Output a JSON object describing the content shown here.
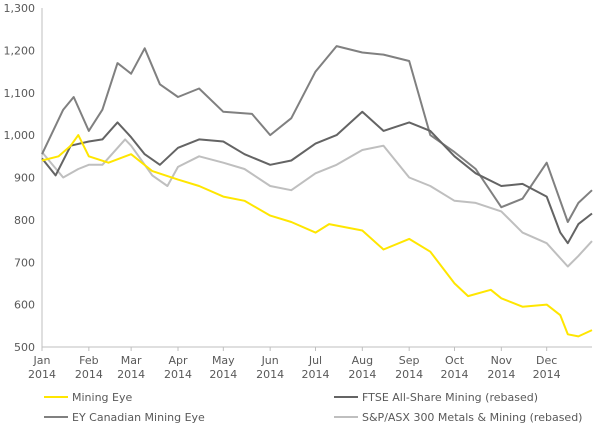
{
  "chart_data": {
    "type": "line",
    "title": "",
    "xlabel": "",
    "ylabel": "",
    "ylim": [
      500,
      1300
    ],
    "yticks": [
      500,
      600,
      700,
      800,
      900,
      1000,
      1100,
      1200,
      1300
    ],
    "yticks_labels": [
      "500",
      "600",
      "700",
      "800",
      "900",
      "1,000",
      "1,100",
      "1,200",
      "1,300"
    ],
    "x_months": [
      {
        "month": "Jan",
        "year": "2014"
      },
      {
        "month": "Feb",
        "year": "2014"
      },
      {
        "month": "Mar",
        "year": "2014"
      },
      {
        "month": "Apr",
        "year": "2014"
      },
      {
        "month": "May",
        "year": "2014"
      },
      {
        "month": "Jun",
        "year": "2014"
      },
      {
        "month": "Jul",
        "year": "2014"
      },
      {
        "month": "Aug",
        "year": "2014"
      },
      {
        "month": "Sep",
        "year": "2014"
      },
      {
        "month": "Oct",
        "year": "2014"
      },
      {
        "month": "Nov",
        "year": "2014"
      },
      {
        "month": "Dec",
        "year": "2014"
      }
    ],
    "grid": false,
    "legend_position": "bottom",
    "series": [
      {
        "name": "Mining Eye",
        "color": "#FFE600",
        "points": [
          [
            "Jan 2014",
            940
          ],
          [
            "Jan 12, 2014",
            950
          ],
          [
            "Jan 20, 2014",
            975
          ],
          [
            "Jan 25, 2014",
            1000
          ],
          [
            "Feb 2014",
            950
          ],
          [
            "Feb 14, 2014",
            935
          ],
          [
            "Mar 2014",
            955
          ],
          [
            "Mar 15, 2014",
            915
          ],
          [
            "Apr 2014",
            895
          ],
          [
            "Apr 15, 2014",
            880
          ],
          [
            "May 2014",
            855
          ],
          [
            "May 15, 2014",
            845
          ],
          [
            "Jun 2014",
            810
          ],
          [
            "Jun 15, 2014",
            795
          ],
          [
            "Jul 2014",
            770
          ],
          [
            "Jul 10, 2014",
            790
          ],
          [
            "Aug 2014",
            775
          ],
          [
            "Aug 15, 2014",
            730
          ],
          [
            "Sep 2014",
            755
          ],
          [
            "Sep 15, 2014",
            725
          ],
          [
            "Oct 2014",
            650
          ],
          [
            "Oct 10, 2014",
            620
          ],
          [
            "Oct 25, 2014",
            635
          ],
          [
            "Nov 2014",
            615
          ],
          [
            "Nov 15, 2014",
            595
          ],
          [
            "Dec 2014",
            600
          ],
          [
            "Dec 10, 2014",
            575
          ],
          [
            "Dec 15, 2014",
            530
          ],
          [
            "Dec 22, 2014",
            525
          ],
          [
            "Dec 31, 2014",
            540
          ]
        ]
      },
      {
        "name": "FTSE All-Share Mining (rebased)",
        "color": "#646464",
        "points": [
          [
            "Jan 2014",
            945
          ],
          [
            "Jan 10, 2014",
            905
          ],
          [
            "Jan 20, 2014",
            975
          ],
          [
            "Feb 2014",
            985
          ],
          [
            "Feb 10, 2014",
            990
          ],
          [
            "Feb 20, 2014",
            1030
          ],
          [
            "Mar 2014",
            995
          ],
          [
            "Mar 10, 2014",
            955
          ],
          [
            "Mar 20, 2014",
            930
          ],
          [
            "Apr 2014",
            970
          ],
          [
            "Apr 15, 2014",
            990
          ],
          [
            "May 2014",
            985
          ],
          [
            "May 15, 2014",
            955
          ],
          [
            "Jun 2014",
            930
          ],
          [
            "Jun 15, 2014",
            940
          ],
          [
            "Jul 2014",
            980
          ],
          [
            "Jul 15, 2014",
            1000
          ],
          [
            "Aug 2014",
            1055
          ],
          [
            "Aug 15, 2014",
            1010
          ],
          [
            "Sep 2014",
            1030
          ],
          [
            "Sep 15, 2014",
            1010
          ],
          [
            "Oct 2014",
            950
          ],
          [
            "Oct 15, 2014",
            910
          ],
          [
            "Nov 2014",
            880
          ],
          [
            "Nov 15, 2014",
            885
          ],
          [
            "Dec 2014",
            855
          ],
          [
            "Dec 10, 2014",
            770
          ],
          [
            "Dec 15, 2014",
            745
          ],
          [
            "Dec 22, 2014",
            790
          ],
          [
            "Dec 31, 2014",
            815
          ]
        ]
      },
      {
        "name": "EY Canadian Mining Eye",
        "color": "#808080",
        "points": [
          [
            "Jan 2014",
            955
          ],
          [
            "Jan 15, 2014",
            1060
          ],
          [
            "Jan 22, 2014",
            1090
          ],
          [
            "Feb 2014",
            1010
          ],
          [
            "Feb 10, 2014",
            1060
          ],
          [
            "Feb 20, 2014",
            1170
          ],
          [
            "Mar 2014",
            1145
          ],
          [
            "Mar 10, 2014",
            1205
          ],
          [
            "Mar 20, 2014",
            1120
          ],
          [
            "Apr 2014",
            1090
          ],
          [
            "Apr 15, 2014",
            1110
          ],
          [
            "May 2014",
            1055
          ],
          [
            "May 20, 2014",
            1050
          ],
          [
            "Jun 2014",
            1000
          ],
          [
            "Jun 15, 2014",
            1040
          ],
          [
            "Jul 2014",
            1150
          ],
          [
            "Jul 15, 2014",
            1210
          ],
          [
            "Aug 2014",
            1195
          ],
          [
            "Aug 15, 2014",
            1190
          ],
          [
            "Sep 2014",
            1175
          ],
          [
            "Sep 15, 2014",
            1000
          ],
          [
            "Oct 2014",
            960
          ],
          [
            "Oct 15, 2014",
            920
          ],
          [
            "Nov 2014",
            830
          ],
          [
            "Nov 15, 2014",
            850
          ],
          [
            "Dec 2014",
            935
          ],
          [
            "Dec 15, 2014",
            795
          ],
          [
            "Dec 22, 2014",
            840
          ],
          [
            "Dec 31, 2014",
            870
          ]
        ]
      },
      {
        "name": "S&P/ASX 300 Metals & Mining (rebased)",
        "color": "#BFBFBF",
        "points": [
          [
            "Jan 2014",
            960
          ],
          [
            "Jan 15, 2014",
            900
          ],
          [
            "Jan 25, 2014",
            920
          ],
          [
            "Feb 2014",
            930
          ],
          [
            "Feb 10, 2014",
            930
          ],
          [
            "Feb 25, 2014",
            990
          ],
          [
            "Mar 2014",
            975
          ],
          [
            "Mar 15, 2014",
            905
          ],
          [
            "Mar 25, 2014",
            880
          ],
          [
            "Apr 2014",
            925
          ],
          [
            "Apr 15, 2014",
            950
          ],
          [
            "May 2014",
            935
          ],
          [
            "May 15, 2014",
            920
          ],
          [
            "Jun 2014",
            880
          ],
          [
            "Jun 15, 2014",
            870
          ],
          [
            "Jul 2014",
            910
          ],
          [
            "Jul 15, 2014",
            930
          ],
          [
            "Aug 2014",
            965
          ],
          [
            "Aug 15, 2014",
            975
          ],
          [
            "Sep 2014",
            900
          ],
          [
            "Sep 15, 2014",
            880
          ],
          [
            "Oct 2014",
            845
          ],
          [
            "Oct 15, 2014",
            840
          ],
          [
            "Nov 2014",
            820
          ],
          [
            "Nov 15, 2014",
            770
          ],
          [
            "Dec 2014",
            745
          ],
          [
            "Dec 15, 2014",
            690
          ],
          [
            "Dec 22, 2014",
            715
          ],
          [
            "Dec 31, 2014",
            750
          ]
        ]
      }
    ]
  }
}
